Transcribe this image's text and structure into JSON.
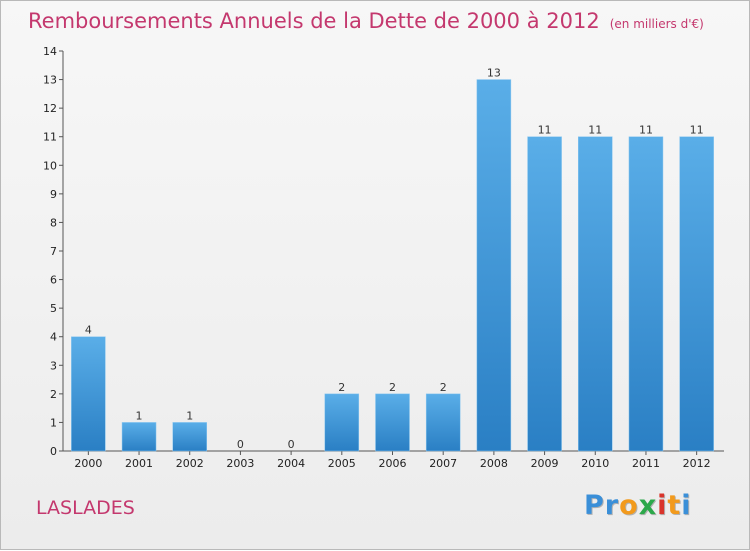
{
  "header": {
    "title": "Remboursements Annuels de la Dette de 2000 à 2012",
    "units": "(en milliers d'€)"
  },
  "footer": {
    "commune": "LASLADES",
    "logo_letters": [
      "P",
      "r",
      "o",
      "x",
      "i",
      "t",
      "i"
    ],
    "logo_colors": [
      "#3a8fd8",
      "#3a8fd8",
      "#f29a1c",
      "#2ca84a",
      "#d9342b",
      "#f29a1c",
      "#3a8fd8"
    ]
  },
  "chart_data": {
    "type": "bar",
    "title": "Remboursements Annuels de la Dette de 2000 à 2012",
    "xlabel": "",
    "ylabel": "",
    "categories": [
      "2000",
      "2001",
      "2002",
      "2003",
      "2004",
      "2005",
      "2006",
      "2007",
      "2008",
      "2009",
      "2010",
      "2011",
      "2012"
    ],
    "values": [
      4,
      1,
      1,
      0,
      0,
      2,
      2,
      2,
      13,
      11,
      11,
      11,
      11
    ],
    "data_labels": [
      "4",
      "1",
      "1",
      "0",
      "0",
      "2",
      "2",
      "2",
      "13",
      "11",
      "11",
      "11",
      "11"
    ],
    "yticks": [
      "0",
      "1",
      "2",
      "3",
      "4",
      "5",
      "6",
      "7",
      "8",
      "9",
      "10",
      "11",
      "12",
      "13",
      "14"
    ],
    "ylim": [
      0,
      14
    ],
    "grid": false,
    "bar_color_top": "#5aaee8",
    "bar_color_bottom": "#2a7fc4"
  }
}
